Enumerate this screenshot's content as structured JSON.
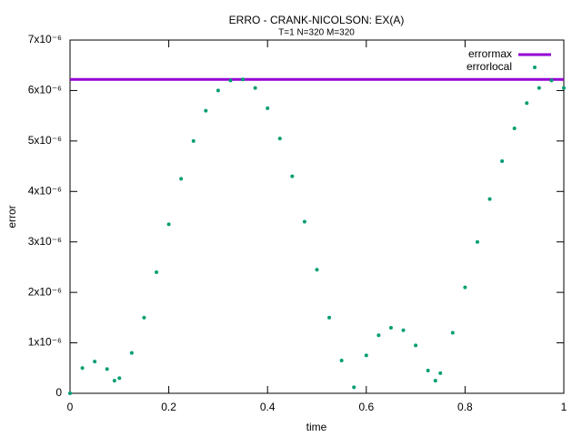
{
  "chart_data": {
    "type": "scatter",
    "title": "ERRO - CRANK-NICOLSON: EX(A)",
    "subtitle": "T=1 N=320 M=320",
    "x_label": "time",
    "y_label": "error",
    "xlim": [
      0,
      1
    ],
    "ylim": [
      0,
      7e-06
    ],
    "xticks": [
      0,
      0.2,
      0.4,
      0.6,
      0.8,
      1
    ],
    "yticks": [
      0,
      {
        "value": 1e-06,
        "label": "1x10⁻⁶"
      },
      {
        "value": 2e-06,
        "label": "2x10⁻⁶"
      },
      {
        "value": 3e-06,
        "label": "3x10⁻⁶"
      },
      {
        "value": 4e-06,
        "label": "4x10⁻⁶"
      },
      {
        "value": 5e-06,
        "label": "5x10⁻⁶"
      },
      {
        "value": 6e-06,
        "label": "6x10⁻⁶"
      },
      {
        "value": 7e-06,
        "label": "7x10⁻⁶"
      }
    ],
    "grid": false,
    "legend": "top-right",
    "series": [
      {
        "name": "errormax",
        "style": "line",
        "color": "#9400d3",
        "x": [
          0,
          1
        ],
        "values": [
          6.22e-06,
          6.22e-06
        ]
      },
      {
        "name": "errorlocal",
        "style": "points",
        "color": "#009e73",
        "x": [
          0,
          0.025,
          0.05,
          0.075,
          0.09,
          0.1,
          0.125,
          0.15,
          0.175,
          0.2,
          0.225,
          0.25,
          0.275,
          0.3,
          0.325,
          0.35,
          0.375,
          0.4,
          0.425,
          0.45,
          0.475,
          0.5,
          0.525,
          0.55,
          0.575,
          0.6,
          0.625,
          0.65,
          0.675,
          0.7,
          0.725,
          0.74,
          0.75,
          0.775,
          0.8,
          0.825,
          0.85,
          0.875,
          0.9,
          0.925,
          0.95,
          0.975,
          1
        ],
        "values": [
          0,
          5e-07,
          6.3e-07,
          4.8e-07,
          2.5e-07,
          3e-07,
          8e-07,
          1.5e-06,
          2.4e-06,
          3.35e-06,
          4.25e-06,
          5e-06,
          5.6e-06,
          6e-06,
          6.2e-06,
          6.22e-06,
          6.05e-06,
          5.65e-06,
          5.05e-06,
          4.3e-06,
          3.4e-06,
          2.45e-06,
          1.5e-06,
          6.5e-07,
          1.2e-07,
          7.5e-07,
          1.15e-06,
          1.3e-06,
          1.25e-06,
          9.5e-07,
          4.5e-07,
          2.5e-07,
          4e-07,
          1.2e-06,
          2.1e-06,
          3e-06,
          3.85e-06,
          4.6e-06,
          5.25e-06,
          5.75e-06,
          6.05e-06,
          6.2e-06,
          6.05e-06
        ]
      }
    ]
  }
}
